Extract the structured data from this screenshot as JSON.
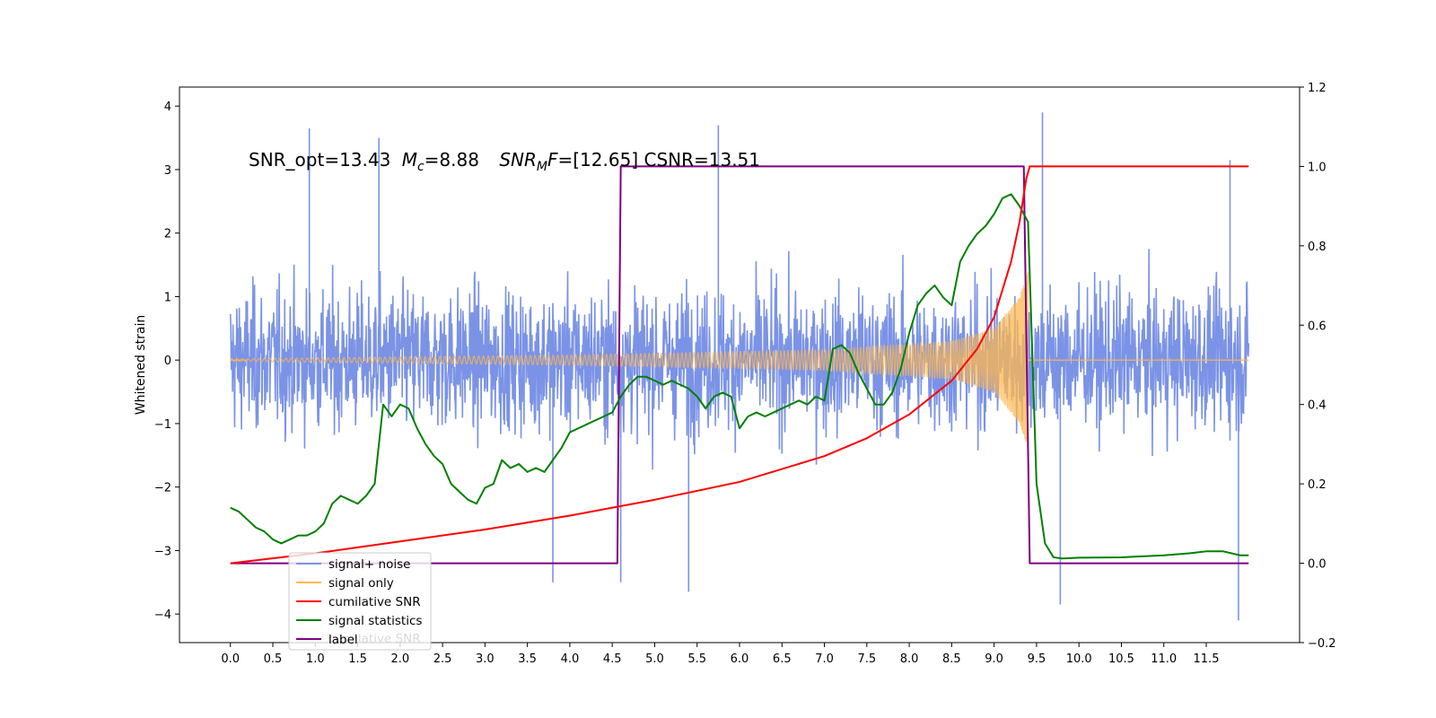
{
  "chart_data": {
    "type": "line",
    "title_parts": {
      "snr_opt": "SNR_opt=13.43",
      "mc_symbol": "M",
      "mc_sub": "c",
      "mc_value": "=8.88",
      "snrmf_symbol": "SNR",
      "snrmf_sub": "M",
      "snrmf_f": "F",
      "snrmf_value": "=[12.65] CSNR=13.51"
    },
    "ylabel_left": "Whitened strain",
    "ylabel_right": "",
    "x_ticks": [
      "0.0",
      "0.5",
      "1.0",
      "1.5",
      "2.0",
      "2.5",
      "3.0",
      "3.5",
      "4.0",
      "4.5",
      "5.0",
      "5.5",
      "6.0",
      "6.5",
      "7.0",
      "7.5",
      "8.0",
      "8.5",
      "9.0",
      "9.5",
      "10.0",
      "10.5",
      "11.0",
      "11.5"
    ],
    "xlim": [
      -0.6,
      12.6
    ],
    "ylim_left": [
      -4.45,
      4.3
    ],
    "ylim_right": [
      -0.2,
      1.2
    ],
    "y_ticks_left": [
      "4",
      "3",
      "2",
      "1",
      "0",
      "−1",
      "−2",
      "−3",
      "−4"
    ],
    "y_ticks_right": [
      "1.2",
      "1.0",
      "0.8",
      "0.6",
      "0.4",
      "0.2",
      "0.0",
      "−0.2"
    ],
    "grid": false,
    "legend_position": "lower-left",
    "legend": [
      {
        "label": "signal+ noise",
        "color": "#7b93e6"
      },
      {
        "label": "signal only",
        "color": "#ffb74d"
      },
      {
        "label": "cumilative SNR",
        "color": "#ff0000"
      },
      {
        "label": "signal statistics",
        "color": "#008000"
      },
      {
        "label": "label",
        "color": "#800080"
      }
    ],
    "legend_hidden_text": "cumilative SNR",
    "series": [
      {
        "name": "signal+ noise",
        "axis": "left",
        "color": "#7b93e6",
        "x_range": [
          0.0,
          12.0
        ],
        "envelope_typical": 2.0,
        "notable_spikes": [
          {
            "x": 0.93,
            "y": 3.65
          },
          {
            "x": 1.75,
            "y": 3.5
          },
          {
            "x": 3.8,
            "y": -3.5
          },
          {
            "x": 4.6,
            "y": -3.5
          },
          {
            "x": 5.4,
            "y": -3.65
          },
          {
            "x": 5.75,
            "y": 3.7
          },
          {
            "x": 9.57,
            "y": 3.9
          },
          {
            "x": 9.78,
            "y": -3.85
          },
          {
            "x": 11.88,
            "y": -4.1
          },
          {
            "x": 11.78,
            "y": 3.15
          }
        ]
      },
      {
        "name": "signal only",
        "axis": "left",
        "color": "#ffb74d",
        "x_range": [
          0.0,
          9.4
        ],
        "amplitude_points": [
          [
            0.0,
            0.02
          ],
          [
            4.0,
            0.08
          ],
          [
            7.0,
            0.16
          ],
          [
            8.5,
            0.3
          ],
          [
            9.0,
            0.5
          ],
          [
            9.3,
            1.0
          ],
          [
            9.4,
            1.4
          ]
        ]
      },
      {
        "name": "cumilative SNR",
        "axis": "right",
        "color": "#ff0000",
        "x": [
          0.0,
          1.0,
          2.0,
          3.0,
          4.0,
          5.0,
          6.0,
          7.0,
          7.5,
          8.0,
          8.5,
          8.8,
          9.0,
          9.2,
          9.3,
          9.38,
          9.42,
          10.0,
          11.0,
          12.0
        ],
        "y": [
          0.0,
          0.025,
          0.055,
          0.085,
          0.12,
          0.16,
          0.205,
          0.27,
          0.315,
          0.375,
          0.46,
          0.54,
          0.62,
          0.76,
          0.86,
          0.97,
          1.0,
          1.0,
          1.0,
          1.0
        ]
      },
      {
        "name": "signal statistics",
        "axis": "right",
        "color": "#008000",
        "x": [
          0.0,
          0.1,
          0.2,
          0.3,
          0.4,
          0.5,
          0.6,
          0.7,
          0.8,
          0.9,
          1.0,
          1.1,
          1.2,
          1.3,
          1.4,
          1.5,
          1.6,
          1.7,
          1.8,
          1.9,
          2.0,
          2.1,
          2.2,
          2.3,
          2.4,
          2.5,
          2.6,
          2.7,
          2.8,
          2.9,
          3.0,
          3.1,
          3.2,
          3.3,
          3.4,
          3.5,
          3.6,
          3.7,
          3.8,
          3.9,
          4.0,
          4.1,
          4.2,
          4.3,
          4.4,
          4.5,
          4.6,
          4.7,
          4.8,
          4.9,
          5.0,
          5.1,
          5.2,
          5.3,
          5.4,
          5.5,
          5.6,
          5.7,
          5.8,
          5.9,
          6.0,
          6.1,
          6.2,
          6.3,
          6.4,
          6.5,
          6.6,
          6.7,
          6.8,
          6.9,
          7.0,
          7.1,
          7.2,
          7.3,
          7.4,
          7.5,
          7.6,
          7.7,
          7.8,
          7.9,
          8.0,
          8.1,
          8.2,
          8.3,
          8.4,
          8.5,
          8.6,
          8.7,
          8.8,
          8.9,
          9.0,
          9.1,
          9.2,
          9.3,
          9.4,
          9.5,
          9.6,
          9.7,
          9.8,
          9.9,
          10.0,
          10.5,
          11.0,
          11.3,
          11.5,
          11.7,
          11.9,
          12.0
        ],
        "y": [
          0.14,
          0.13,
          0.11,
          0.09,
          0.08,
          0.06,
          0.05,
          0.06,
          0.07,
          0.07,
          0.08,
          0.1,
          0.15,
          0.17,
          0.16,
          0.15,
          0.17,
          0.2,
          0.4,
          0.37,
          0.4,
          0.39,
          0.34,
          0.3,
          0.27,
          0.25,
          0.2,
          0.18,
          0.16,
          0.15,
          0.19,
          0.2,
          0.26,
          0.24,
          0.25,
          0.23,
          0.24,
          0.23,
          0.26,
          0.29,
          0.33,
          0.34,
          0.35,
          0.36,
          0.37,
          0.38,
          0.42,
          0.45,
          0.47,
          0.47,
          0.46,
          0.45,
          0.46,
          0.45,
          0.44,
          0.42,
          0.39,
          0.42,
          0.43,
          0.42,
          0.34,
          0.37,
          0.38,
          0.37,
          0.38,
          0.39,
          0.4,
          0.41,
          0.4,
          0.42,
          0.41,
          0.54,
          0.55,
          0.53,
          0.48,
          0.44,
          0.4,
          0.4,
          0.43,
          0.49,
          0.58,
          0.65,
          0.68,
          0.7,
          0.67,
          0.65,
          0.76,
          0.8,
          0.83,
          0.85,
          0.88,
          0.92,
          0.93,
          0.9,
          0.86,
          0.2,
          0.05,
          0.015,
          0.012,
          0.013,
          0.014,
          0.015,
          0.02,
          0.025,
          0.03,
          0.03,
          0.02,
          0.02
        ]
      },
      {
        "name": "label",
        "axis": "right",
        "color": "#800080",
        "x": [
          0.0,
          4.56,
          4.6,
          9.35,
          9.42,
          12.0
        ],
        "y": [
          0.0,
          0.0,
          1.0,
          1.0,
          0.0,
          0.0
        ]
      }
    ]
  }
}
